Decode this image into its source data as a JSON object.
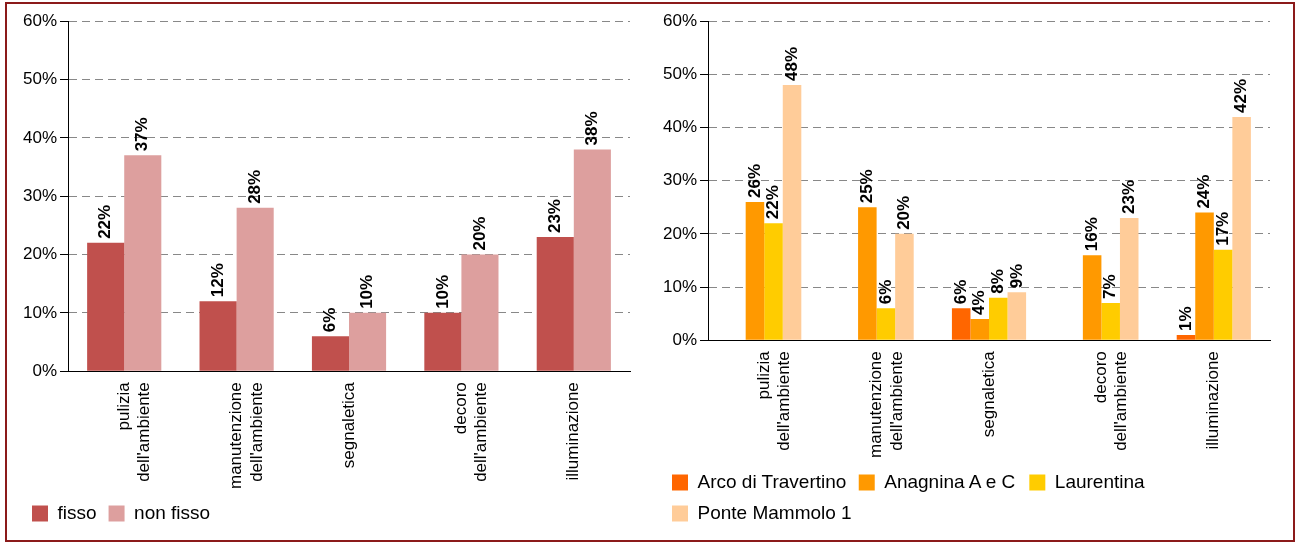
{
  "chart_data": [
    {
      "type": "bar",
      "categories": [
        "pulizia dell'ambiente",
        "manutenzione dell'ambiente",
        "segnaletica",
        "decoro dell'ambiente",
        "illuminazione"
      ],
      "series": [
        {
          "name": "fisso",
          "color": "#c0504d",
          "values": [
            22,
            12,
            6,
            10,
            23
          ],
          "value_labels": [
            "22%",
            "12%",
            "6%",
            "10%",
            "23%"
          ]
        },
        {
          "name": "non fisso",
          "color": "#dd9f9e",
          "values": [
            37,
            28,
            10,
            20,
            38
          ],
          "value_labels": [
            "37%",
            "28%",
            "10%",
            "20%",
            "38%"
          ]
        }
      ],
      "ylim": [
        0,
        60
      ],
      "yticks": [
        {
          "value": 0,
          "label": "0%"
        },
        {
          "value": 10,
          "label": "10%"
        },
        {
          "value": 20,
          "label": "20%"
        },
        {
          "value": 30,
          "label": "30%"
        },
        {
          "value": 40,
          "label": "40%"
        },
        {
          "value": 50,
          "label": "50%"
        },
        {
          "value": 60,
          "label": "60%"
        }
      ],
      "grid": "y",
      "legend": "bottom"
    },
    {
      "type": "bar",
      "categories": [
        "pulizia dell'ambiente",
        "manutenzione dell'ambiente",
        "segnaletica",
        "decoro dell'ambiente",
        "illuminazione"
      ],
      "series": [
        {
          "name": "Arco di Travertino",
          "color": "#ff6600",
          "values": [
            null,
            null,
            6,
            null,
            1
          ],
          "value_labels": [
            null,
            null,
            "6%",
            null,
            "1%"
          ]
        },
        {
          "name": "Anagnina A e C",
          "color": "#ff9900",
          "values": [
            26,
            25,
            4,
            16,
            24
          ],
          "value_labels": [
            "26%",
            "25%",
            "4%",
            "16%",
            "24%"
          ]
        },
        {
          "name": "Laurentina",
          "color": "#ffcc00",
          "values": [
            22,
            6,
            8,
            7,
            17
          ],
          "value_labels": [
            "22%",
            "6%",
            "8%",
            "7%",
            "17%"
          ]
        },
        {
          "name": "Ponte Mammolo 1",
          "color": "#ffcc99",
          "values": [
            48,
            20,
            9,
            23,
            42
          ],
          "value_labels": [
            "48%",
            "20%",
            "9%",
            "23%",
            "42%"
          ]
        }
      ],
      "ylim": [
        0,
        60
      ],
      "yticks": [
        {
          "value": 0,
          "label": "0%"
        },
        {
          "value": 10,
          "label": "10%"
        },
        {
          "value": 20,
          "label": "20%"
        },
        {
          "value": 30,
          "label": "30%"
        },
        {
          "value": 40,
          "label": "40%"
        },
        {
          "value": 50,
          "label": "50%"
        },
        {
          "value": 60,
          "label": "60%"
        }
      ],
      "grid": "y",
      "legend": "bottom"
    }
  ]
}
